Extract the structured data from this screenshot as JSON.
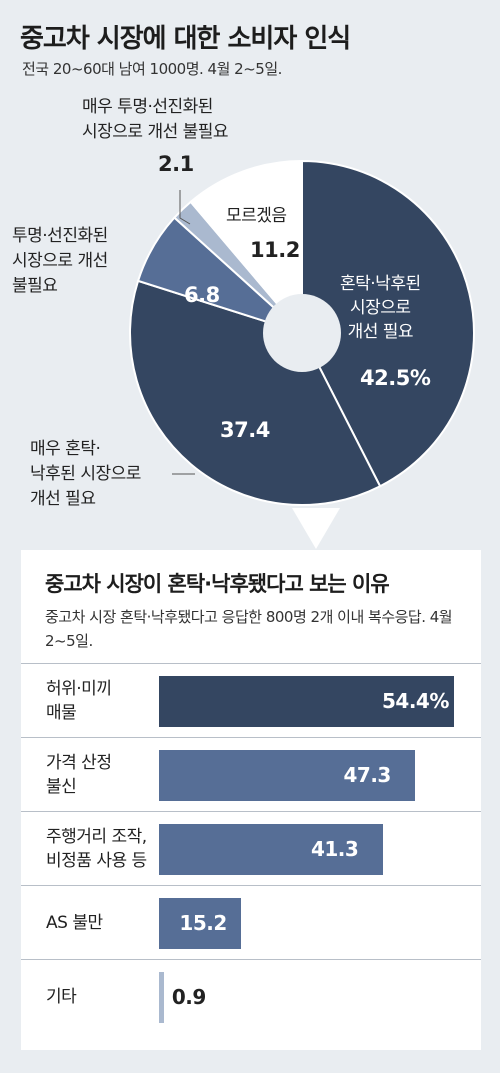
{
  "colors": {
    "dark": "#344661",
    "medium": "#566e96",
    "light": "#aab9cf",
    "white": "#ffffff",
    "background": "#e9edf1"
  },
  "header": {
    "title": "중고차 시장에 대한 소비자 인식",
    "subtitle": "전국 20~60대 남여 1000명. 4월 2~5일."
  },
  "pie": {
    "label_very_muddy": "매우 혼탁·\n낙후된 시장으로\n개선 필요",
    "label_not_needed": "투명·선진화된\n시장으로 개선\n불필요",
    "label_very_not_needed": "매우 투명·선진화된\n시장으로 개선 불필요",
    "label_dont_know": "모르겠음",
    "label_muddy": "혼탁·낙후된\n시장으로\n개선 필요"
  },
  "bars": {
    "title": "중고차 시장이 혼탁·낙후됐다고 보는 이유",
    "subtitle": "중고차 시장 혼탁·낙후됐다고 응답한 800명 2개 이내 복수응답. 4월 2~5일."
  },
  "chart_data": [
    {
      "type": "pie",
      "title": "중고차 시장에 대한 소비자 인식",
      "slices": [
        {
          "label": "혼탁·낙후된 시장으로 개선 필요",
          "value": 42.5,
          "display": "42.5%",
          "color": "#344661"
        },
        {
          "label": "매우 혼탁·낙후된 시장으로 개선 필요",
          "value": 37.4,
          "display": "37.4",
          "color": "#344661"
        },
        {
          "label": "투명·선진화된 시장으로 개선 불필요",
          "value": 6.8,
          "display": "6.8",
          "color": "#566e96"
        },
        {
          "label": "매우 투명·선진화된 시장으로 개선 불필요",
          "value": 2.1,
          "display": "2.1",
          "color": "#aab9cf"
        },
        {
          "label": "모르겠음",
          "value": 11.2,
          "display": "11.2",
          "color": "#ffffff"
        }
      ]
    },
    {
      "type": "bar",
      "title": "중고차 시장이 혼탁·낙후됐다고 보는 이유",
      "categories": [
        "허위·미끼\n매물",
        "가격 산정\n불신",
        "주행거리 조작,\n비정품 사용 등",
        "AS 불만",
        "기타"
      ],
      "values": [
        54.4,
        47.3,
        41.3,
        15.2,
        0.9
      ],
      "value_labels": [
        "54.4%",
        "47.3",
        "41.3",
        "15.2",
        "0.9"
      ],
      "bar_colors": [
        "#344661",
        "#566e96",
        "#566e96",
        "#566e96",
        "#aab9cf"
      ],
      "xlim": [
        0,
        54.4
      ]
    }
  ]
}
